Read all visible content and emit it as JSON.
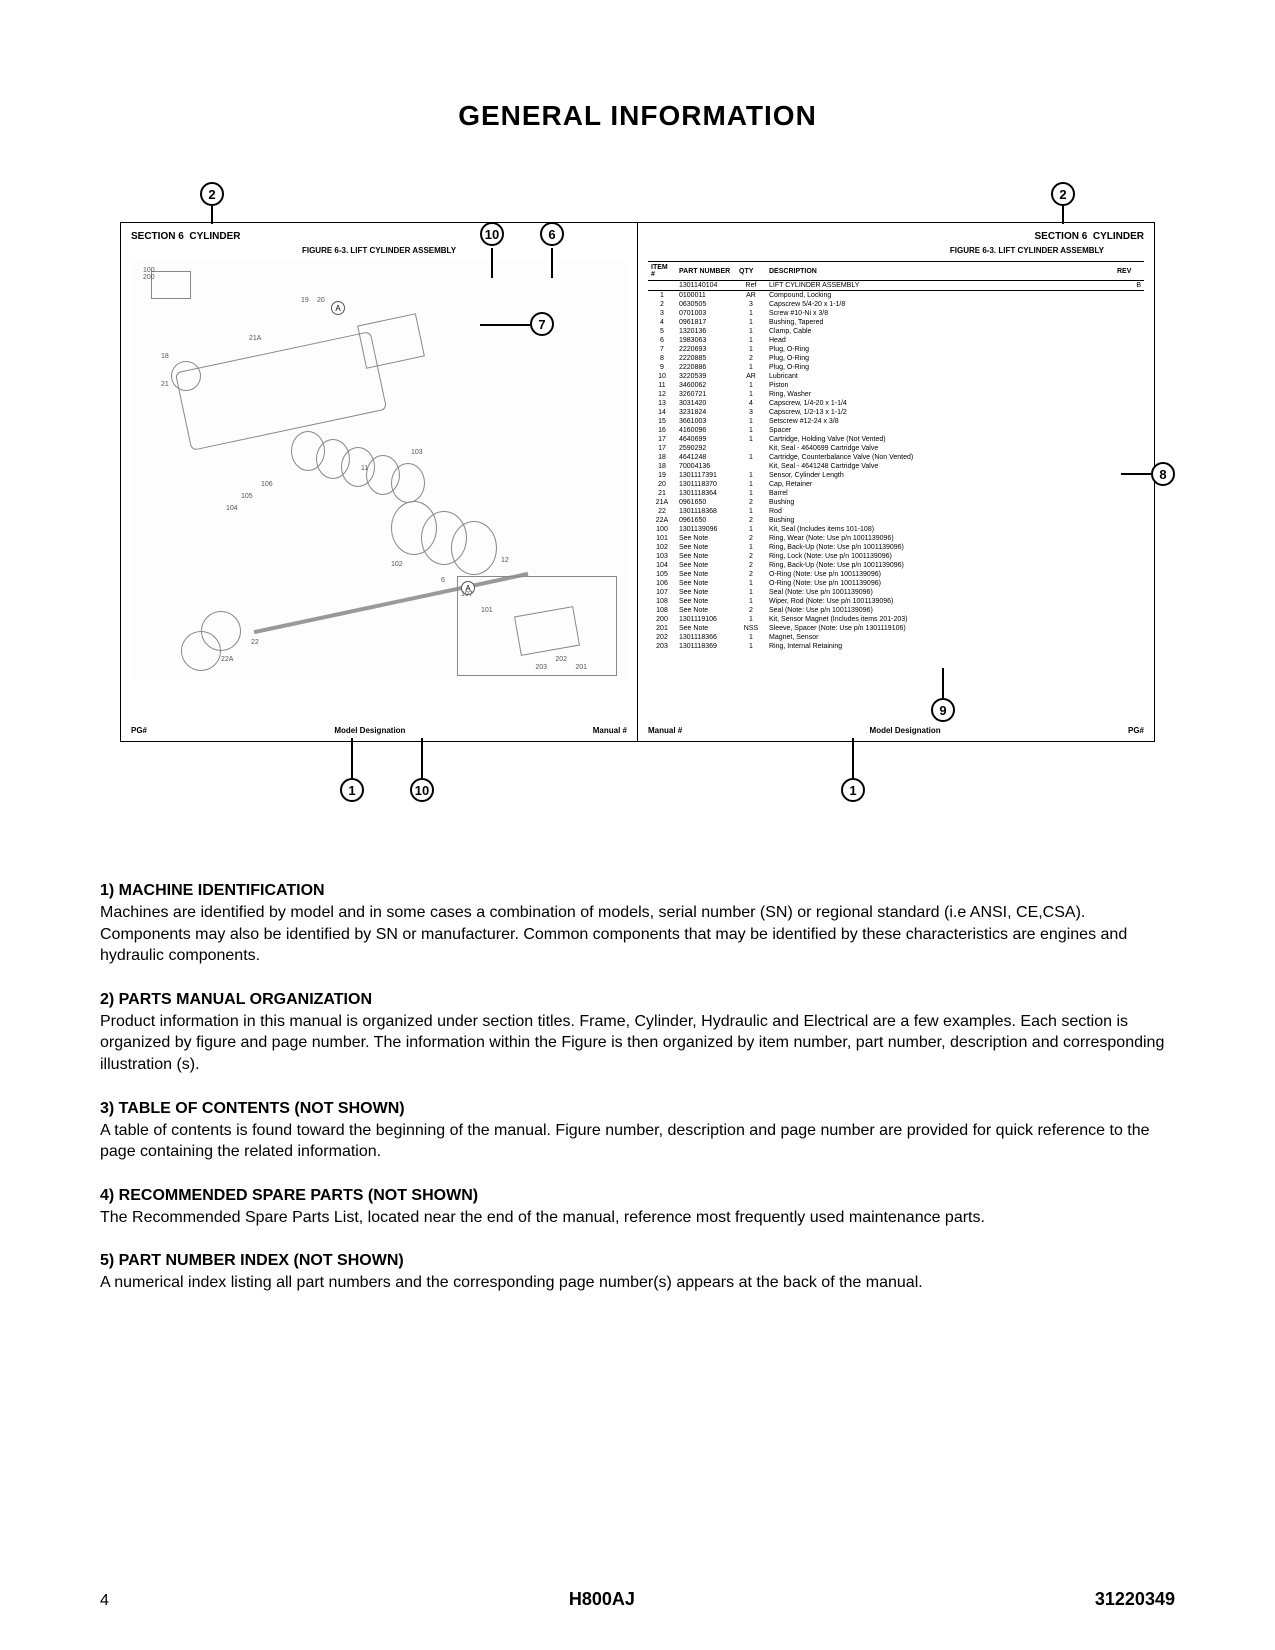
{
  "title": "GENERAL INFORMATION",
  "diagram": {
    "callouts": {
      "c2a": "2",
      "c2b": "2",
      "c10a": "10",
      "c10b": "10",
      "c6": "6",
      "c7": "7",
      "c8": "8",
      "c9": "9",
      "c1a": "1",
      "c1b": "1"
    },
    "left_panel": {
      "section_left": "SECTION 6",
      "section_right": "CYLINDER",
      "figure_title": "FIGURE 6-3. LIFT CYLINDER ASSEMBLY",
      "footer_left": "PG#",
      "footer_mid": "Model Designation",
      "footer_right": "Manual #",
      "letter_a": "A",
      "label_21a": "21A",
      "inset_label": "A"
    },
    "right_panel": {
      "section_left": "SECTION 6",
      "section_right": "CYLINDER",
      "figure_title": "FIGURE 6-3. LIFT CYLINDER ASSEMBLY",
      "footer_left": "Manual #",
      "footer_mid": "Model Designation",
      "footer_right": "PG#",
      "table_headers": [
        "ITEM #",
        "PART NUMBER",
        "QTY",
        "DESCRIPTION",
        "REV"
      ],
      "top_row": [
        "",
        "1301140104",
        "Ref",
        "LIFT CYLINDER ASSEMBLY",
        "B"
      ],
      "rows": [
        [
          "1",
          "0100011",
          "AR",
          "Compound, Locking",
          ""
        ],
        [
          "2",
          "0630505",
          "3",
          "Capscrew 5/4-20 x 1-1/8",
          ""
        ],
        [
          "3",
          "0701003",
          "1",
          "Screw #10-Ni x 3/8",
          ""
        ],
        [
          "4",
          "0961817",
          "1",
          "Bushing, Tapered",
          ""
        ],
        [
          "5",
          "1320136",
          "1",
          "Clamp, Cable",
          ""
        ],
        [
          "6",
          "1983063",
          "1",
          "Head",
          ""
        ],
        [
          "7",
          "2220693",
          "1",
          "Plug, O-Ring",
          ""
        ],
        [
          "8",
          "2220885",
          "2",
          "Plug, O-Ring",
          ""
        ],
        [
          "9",
          "2220886",
          "1",
          "Plug, O-Ring",
          ""
        ],
        [
          "10",
          "3220539",
          "AR",
          "Lubricant",
          ""
        ],
        [
          "11",
          "3460062",
          "1",
          "Piston",
          ""
        ],
        [
          "12",
          "3260721",
          "1",
          "Ring, Washer",
          ""
        ],
        [
          "13",
          "3031420",
          "4",
          "Capscrew, 1/4-20 x 1-1/4",
          ""
        ],
        [
          "14",
          "3231824",
          "3",
          "Capscrew, 1/2-13 x 1-1/2",
          ""
        ],
        [
          "15",
          "3661003",
          "1",
          "Setscrew #12-24 x 3/8",
          ""
        ],
        [
          "16",
          "4160096",
          "1",
          "Spacer",
          ""
        ],
        [
          "17",
          "4640699",
          "1",
          "Cartridge, Holding Valve (Not Vented)",
          ""
        ],
        [
          "17",
          "2590292",
          "",
          "Kit, Seal - 4640699 Cartridge Valve",
          ""
        ],
        [
          "18",
          "4641248",
          "1",
          "Cartridge, Counterbalance Valve (Non Vented)",
          ""
        ],
        [
          "18",
          "70004136",
          "",
          "Kit, Seal - 4641248 Cartridge Valve",
          ""
        ],
        [
          "19",
          "1301117391",
          "1",
          "Sensor, Cylinder Length",
          ""
        ],
        [
          "20",
          "1301118370",
          "1",
          "Cap, Retainer",
          ""
        ],
        [
          "21",
          "1301118364",
          "1",
          "Barrel",
          ""
        ],
        [
          "21A",
          "0961650",
          "2",
          "Bushing",
          ""
        ],
        [
          "22",
          "1301118368",
          "1",
          "Rod",
          ""
        ],
        [
          "22A",
          "0961650",
          "2",
          "Bushing",
          ""
        ],
        [
          "100",
          "1301139096",
          "1",
          "Kit, Seal (Includes items 101-108)",
          ""
        ],
        [
          "101",
          "See Note",
          "2",
          "Ring, Wear (Note: Use p/n 1001139096)",
          ""
        ],
        [
          "102",
          "See Note",
          "1",
          "Ring, Back-Up (Note: Use p/n 1001139096)",
          ""
        ],
        [
          "103",
          "See Note",
          "2",
          "Ring, Lock (Note: Use p/n 1001139096)",
          ""
        ],
        [
          "104",
          "See Note",
          "2",
          "Ring, Back-Up (Note: Use p/n 1001139096)",
          ""
        ],
        [
          "105",
          "See Note",
          "2",
          "O-Ring (Note: Use p/n 1001139096)",
          ""
        ],
        [
          "106",
          "See Note",
          "1",
          "O-Ring (Note: Use p/n 1001139096)",
          ""
        ],
        [
          "107",
          "See Note",
          "1",
          "Seal (Note: Use p/n 1001139096)",
          ""
        ],
        [
          "108",
          "See Note",
          "1",
          "Wiper, Rod (Note: Use p/n 1001139096)",
          ""
        ],
        [
          "108",
          "See Note",
          "2",
          "Seal (Note: Use p/n 1001139096)",
          ""
        ],
        [
          "200",
          "1301119106",
          "1",
          "Kit, Sensor Magnet (Includes items 201-203)",
          ""
        ],
        [
          "201",
          "See Note",
          "NSS",
          "Sleeve, Spacer (Note: Use p/n 1301119106)",
          ""
        ],
        [
          "202",
          "1301118366",
          "1",
          "Magnet, Sensor",
          ""
        ],
        [
          "203",
          "1301118369",
          "1",
          "Ring, Internal Retaining",
          ""
        ]
      ]
    }
  },
  "sections": [
    {
      "heading": "1) MACHINE IDENTIFICATION",
      "body": "Machines are identified by model and in some cases a combination of models, serial number (SN) or regional standard (i.e ANSI, CE,CSA). Components may also be identified by SN or manufacturer. Common components that may be identified by these characteristics are engines and hydraulic components."
    },
    {
      "heading": "2) PARTS MANUAL ORGANIZATION",
      "body": "Product information in this manual is organized under section titles. Frame, Cylinder, Hydraulic and Electrical are a few examples. Each section is organized by figure and page number. The information within the Figure is then organized by item number, part number, description and corresponding illustration (s)."
    },
    {
      "heading": "3) TABLE OF CONTENTS (NOT SHOWN)",
      "body": "A table of contents is found toward the beginning of the manual. Figure number, description and page number are provided for quick reference to the page containing the related information."
    },
    {
      "heading": "4) RECOMMENDED SPARE PARTS (NOT SHOWN)",
      "body": "The Recommended Spare Parts List, located near the end of the manual, reference most frequently used maintenance parts."
    },
    {
      "heading": "5) PART NUMBER INDEX (NOT SHOWN)",
      "body": "A numerical index listing all part numbers and the corresponding page number(s) appears at the back of the manual."
    }
  ],
  "footer": {
    "page": "4",
    "model": "H800AJ",
    "docnum": "31220349"
  }
}
